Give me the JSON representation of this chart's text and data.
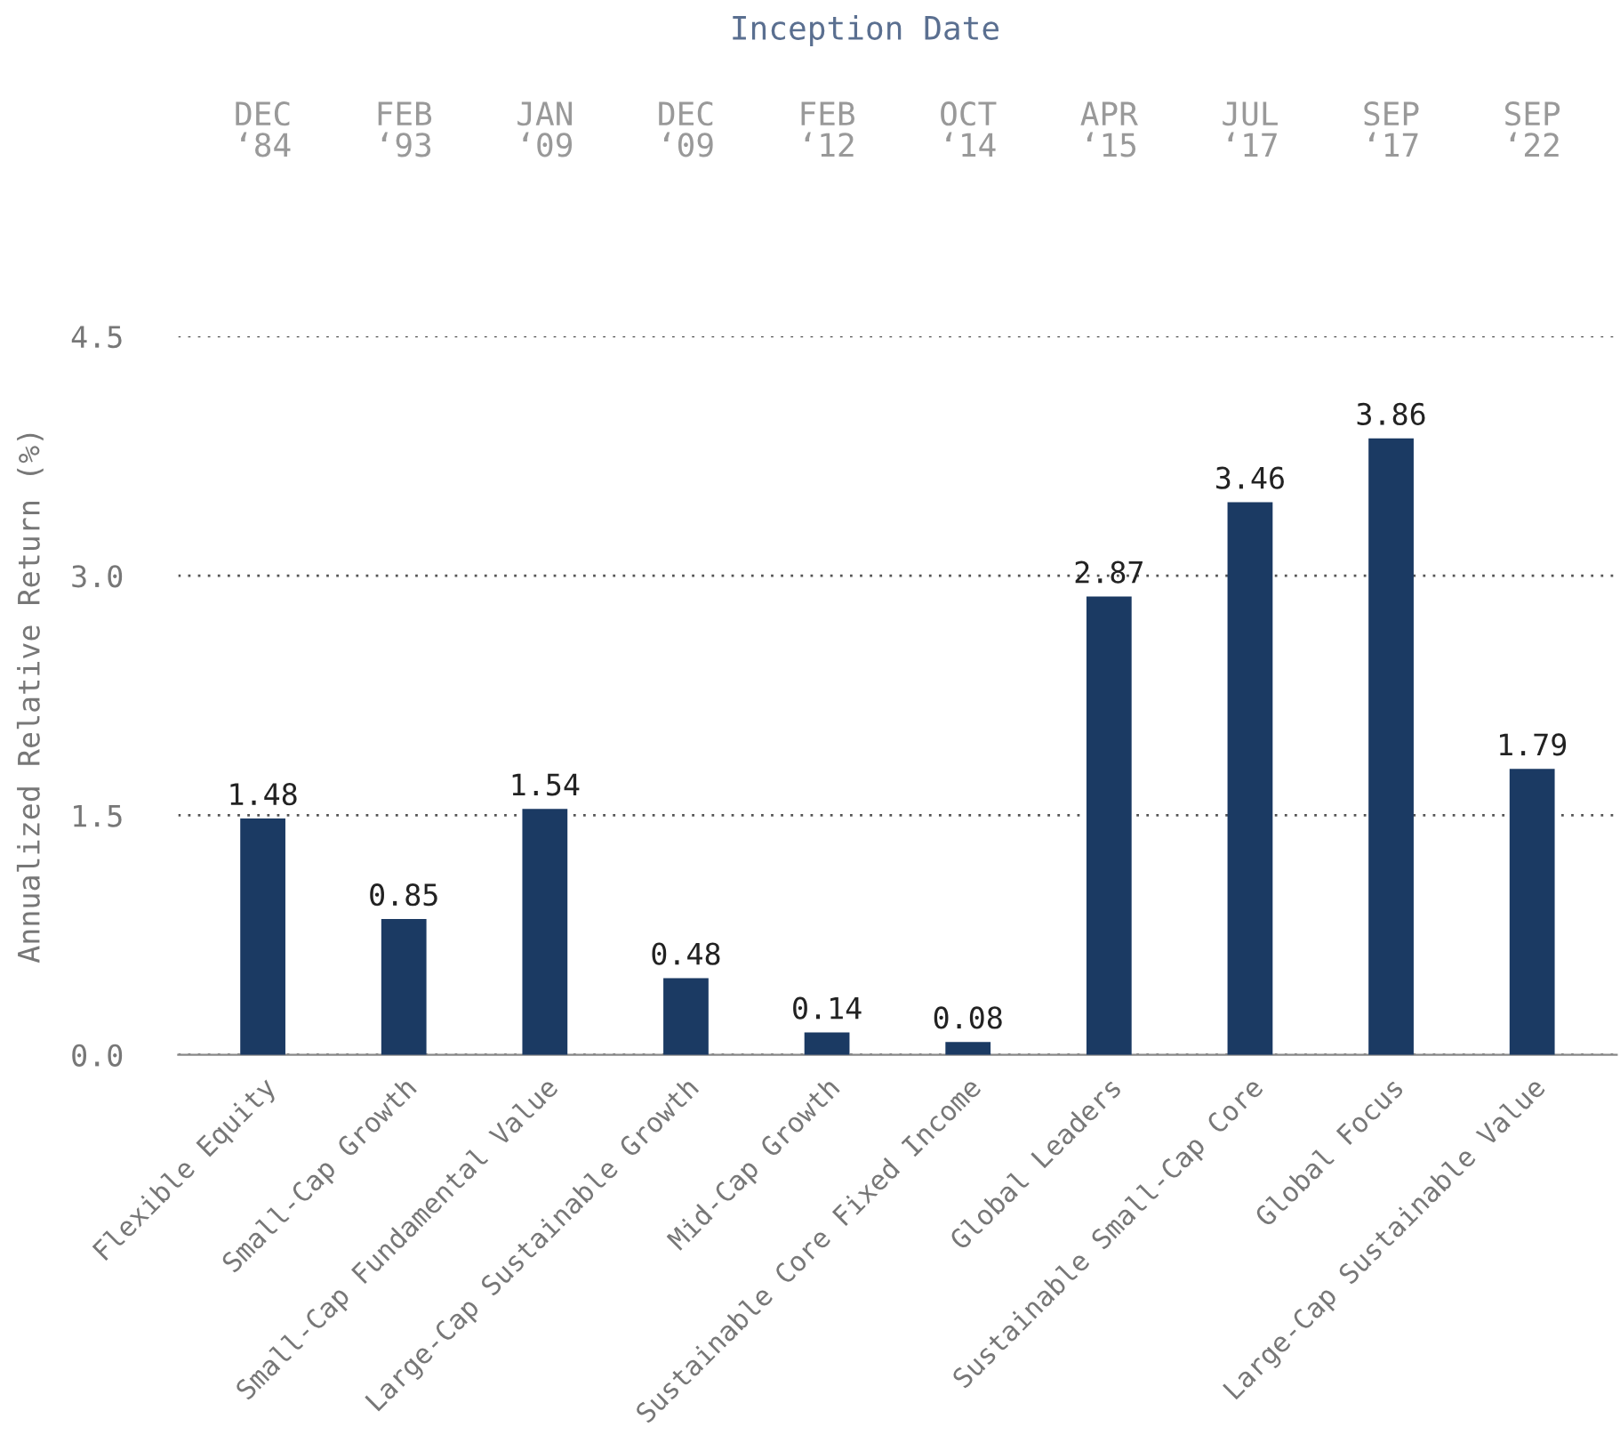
{
  "chart_data": {
    "type": "bar",
    "ylabel": "Annualized Relative Return (%)",
    "x2label": "Inception Date",
    "categories": [
      "Flexible Equity",
      "Small-Cap Growth",
      "Small-Cap Fundamental Value",
      "Large-Cap Sustainable Growth",
      "Mid-Cap Growth",
      "Sustainable Core Fixed Income",
      "Global Leaders",
      "Sustainable Small-Cap Core",
      "Global Focus",
      "Large-Cap Sustainable Value"
    ],
    "values": [
      1.48,
      0.85,
      1.54,
      0.48,
      0.14,
      0.08,
      2.87,
      3.46,
      3.86,
      1.79
    ],
    "color": "#1b3a63",
    "data_labels": true,
    "ylim": [
      0,
      4.5
    ],
    "yticks": [
      {
        "value": 0,
        "label": "0.0"
      },
      {
        "value": 1.5,
        "label": "1.5"
      },
      {
        "value": 3,
        "label": "3.0"
      },
      {
        "value": 4.5,
        "label": "4.5"
      }
    ],
    "grid": "y",
    "annotations": [
      "DEC\n‘84",
      "FEB\n‘93",
      "JAN\n‘09",
      "DEC\n‘09",
      "FEB\n‘12",
      "OCT\n‘14",
      "APR\n‘15",
      "JUL\n‘17",
      "SEP\n‘17",
      "SEP\n‘22"
    ]
  }
}
